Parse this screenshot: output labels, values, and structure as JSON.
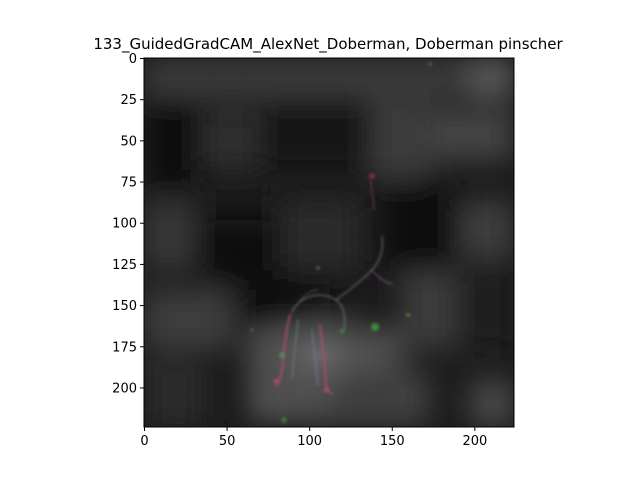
{
  "figure": {
    "title": "133_GuidedGradCAM_AlexNet_Doberman, Doberman pinscher"
  },
  "image_axes": {
    "x_range": [
      0,
      224
    ],
    "y_range": [
      0,
      224
    ],
    "x_ticks": [
      0,
      50,
      100,
      150,
      200
    ],
    "y_ticks": [
      0,
      25,
      50,
      75,
      100,
      125,
      150,
      175,
      200
    ],
    "y_inverted": true,
    "grid": false
  },
  "colors": {
    "background": "#ffffff",
    "axes_frame": "#000000",
    "image_base": "#0d0d0d"
  }
}
